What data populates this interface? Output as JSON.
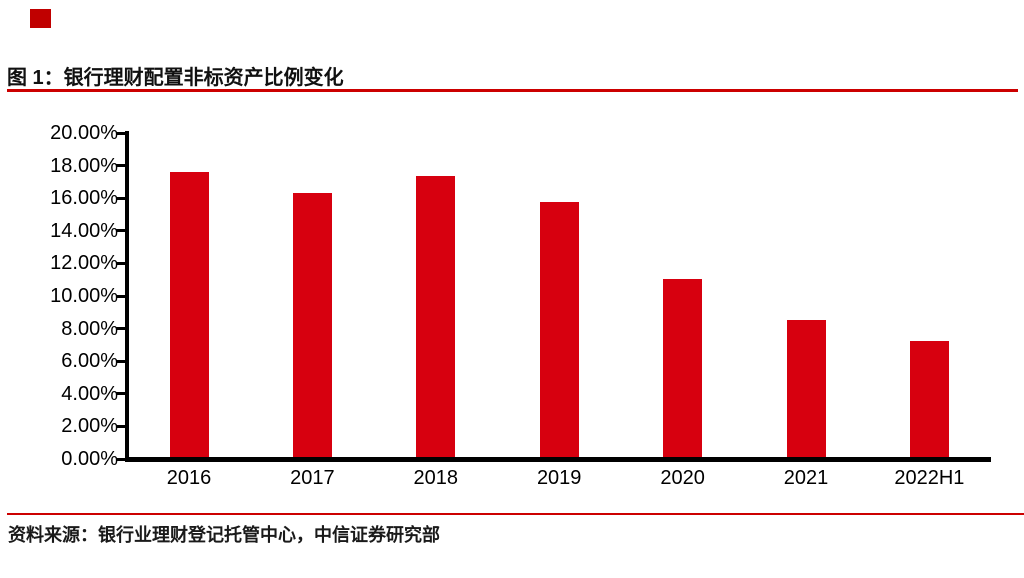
{
  "page": {
    "figure_label": "图 1：银行理财配置非标资产比例变化",
    "source_note": "资料来源：银行业理财登记托管中心，中信证券研究部"
  },
  "colors": {
    "bar_red": "#d7000f",
    "accent_red": "#cc0000",
    "corner_red": "#c00000",
    "axis_black": "#000000",
    "text_black": "#111111"
  },
  "chart_data": {
    "type": "bar",
    "title": "银行理财配置非标资产比例变化",
    "categories": [
      "2016",
      "2017",
      "2018",
      "2019",
      "2020",
      "2021",
      "2022H1"
    ],
    "values": [
      17.49,
      16.22,
      17.23,
      15.63,
      10.89,
      8.4,
      7.14
    ],
    "unit": "%",
    "xlabel": "",
    "ylabel": "",
    "ylim": [
      0,
      20
    ],
    "ytick_step": 2,
    "ytick_labels": [
      "0.00%",
      "2.00%",
      "4.00%",
      "6.00%",
      "8.00%",
      "10.00%",
      "12.00%",
      "14.00%",
      "16.00%",
      "18.00%",
      "20.00%"
    ],
    "grid": false,
    "legend": false,
    "bar_color": "#d7000f"
  }
}
